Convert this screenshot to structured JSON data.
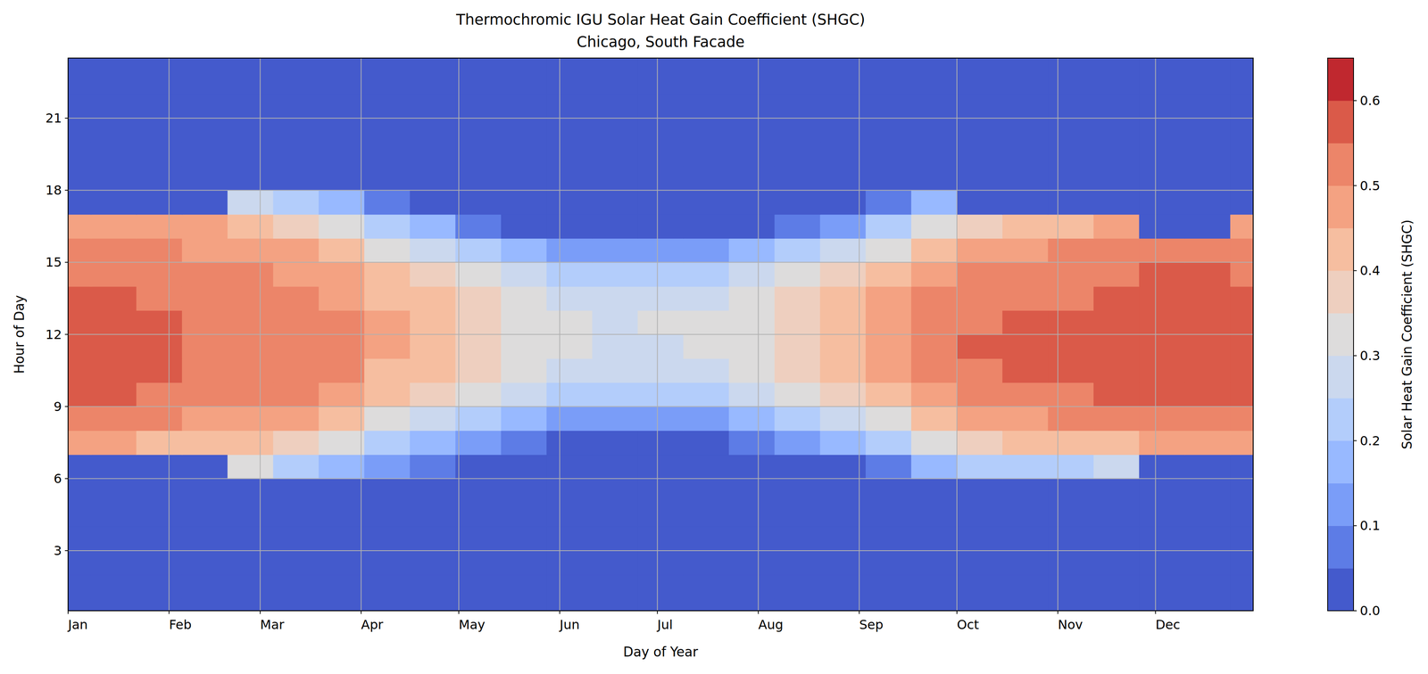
{
  "chart_data": {
    "type": "heatmap",
    "title": "Thermochromic IGU Solar Heat Gain Coefficient (SHGC)",
    "subtitle": "Chicago, South Facade",
    "x_label": "Day of Year",
    "y_label": "Hour of Day",
    "x": [
      1,
      15,
      29,
      43,
      57,
      71,
      85,
      99,
      113,
      127,
      141,
      155,
      169,
      183,
      197,
      211,
      225,
      239,
      253,
      267,
      281,
      295,
      309,
      323,
      337,
      351,
      365
    ],
    "y": [
      0.5,
      1.5,
      2.5,
      3.5,
      4.5,
      5.5,
      6.5,
      7.5,
      8.5,
      9.5,
      10.5,
      11.5,
      12.5,
      13.5,
      14.5,
      15.5,
      16.5,
      17.5,
      18.5,
      19.5,
      20.5,
      21.5,
      22.5,
      23.5
    ],
    "values": [
      [
        0,
        0,
        0,
        0,
        0,
        0,
        0,
        0,
        0,
        0,
        0,
        0,
        0,
        0,
        0,
        0,
        0,
        0,
        0,
        0,
        0,
        0,
        0,
        0,
        0,
        0,
        0
      ],
      [
        0,
        0,
        0,
        0,
        0,
        0,
        0,
        0,
        0,
        0,
        0,
        0,
        0,
        0,
        0,
        0,
        0,
        0,
        0,
        0,
        0,
        0,
        0,
        0,
        0,
        0,
        0
      ],
      [
        0,
        0,
        0,
        0,
        0,
        0,
        0,
        0,
        0,
        0,
        0,
        0,
        0,
        0,
        0,
        0,
        0,
        0,
        0,
        0,
        0,
        0,
        0,
        0,
        0,
        0,
        0
      ],
      [
        0,
        0,
        0,
        0,
        0,
        0,
        0,
        0,
        0,
        0,
        0,
        0,
        0,
        0,
        0,
        0,
        0,
        0,
        0,
        0,
        0,
        0,
        0,
        0,
        0,
        0,
        0
      ],
      [
        0,
        0,
        0,
        0,
        0,
        0,
        0,
        0,
        0,
        0,
        0,
        0,
        0,
        0,
        0,
        0,
        0,
        0,
        0,
        0,
        0,
        0,
        0,
        0,
        0,
        0,
        0
      ],
      [
        0,
        0,
        0,
        0,
        0,
        0,
        0,
        0,
        0,
        0,
        0,
        0,
        0,
        0,
        0,
        0,
        0,
        0,
        0,
        0.01,
        0,
        0,
        0,
        0,
        0,
        0,
        0
      ],
      [
        0,
        0,
        0,
        0,
        0.3,
        0.2,
        0.15,
        0.1,
        0.05,
        0.02,
        0,
        0,
        0,
        0,
        0,
        0,
        0.01,
        0.04,
        0.08,
        0.15,
        0.2,
        0.2,
        0.22,
        0.25,
        0,
        0,
        0
      ],
      [
        0.45,
        0.45,
        0.43,
        0.42,
        0.4,
        0.35,
        0.3,
        0.22,
        0.15,
        0.1,
        0.06,
        0.03,
        0.02,
        0.02,
        0.03,
        0.05,
        0.1,
        0.15,
        0.22,
        0.3,
        0.37,
        0.4,
        0.42,
        0.44,
        0.47,
        0.47,
        0.46
      ],
      [
        0.52,
        0.52,
        0.5,
        0.49,
        0.47,
        0.45,
        0.4,
        0.33,
        0.27,
        0.22,
        0.17,
        0.14,
        0.12,
        0.12,
        0.13,
        0.16,
        0.22,
        0.28,
        0.34,
        0.42,
        0.46,
        0.48,
        0.5,
        0.52,
        0.54,
        0.54,
        0.53
      ],
      [
        0.57,
        0.56,
        0.54,
        0.52,
        0.5,
        0.5,
        0.47,
        0.4,
        0.36,
        0.3,
        0.27,
        0.23,
        0.22,
        0.22,
        0.23,
        0.27,
        0.32,
        0.37,
        0.42,
        0.48,
        0.52,
        0.53,
        0.54,
        0.56,
        0.58,
        0.58,
        0.57
      ],
      [
        0.58,
        0.58,
        0.56,
        0.53,
        0.52,
        0.52,
        0.5,
        0.43,
        0.4,
        0.36,
        0.31,
        0.28,
        0.27,
        0.27,
        0.28,
        0.32,
        0.37,
        0.42,
        0.46,
        0.52,
        0.54,
        0.55,
        0.56,
        0.57,
        0.58,
        0.59,
        0.58
      ],
      [
        0.58,
        0.57,
        0.56,
        0.53,
        0.52,
        0.52,
        0.5,
        0.45,
        0.42,
        0.38,
        0.33,
        0.3,
        0.29,
        0.29,
        0.3,
        0.34,
        0.39,
        0.43,
        0.47,
        0.52,
        0.55,
        0.56,
        0.57,
        0.58,
        0.59,
        0.59,
        0.58
      ],
      [
        0.58,
        0.57,
        0.55,
        0.53,
        0.52,
        0.52,
        0.5,
        0.45,
        0.42,
        0.37,
        0.33,
        0.3,
        0.29,
        0.3,
        0.3,
        0.34,
        0.39,
        0.43,
        0.47,
        0.52,
        0.54,
        0.55,
        0.56,
        0.57,
        0.58,
        0.59,
        0.58
      ],
      [
        0.57,
        0.56,
        0.54,
        0.52,
        0.51,
        0.5,
        0.48,
        0.43,
        0.4,
        0.35,
        0.3,
        0.27,
        0.26,
        0.27,
        0.28,
        0.31,
        0.36,
        0.41,
        0.45,
        0.5,
        0.52,
        0.53,
        0.54,
        0.56,
        0.57,
        0.58,
        0.57
      ],
      [
        0.53,
        0.52,
        0.51,
        0.5,
        0.5,
        0.48,
        0.45,
        0.4,
        0.36,
        0.3,
        0.25,
        0.22,
        0.21,
        0.21,
        0.22,
        0.26,
        0.31,
        0.36,
        0.41,
        0.46,
        0.5,
        0.51,
        0.52,
        0.53,
        0.55,
        0.56,
        0.54
      ],
      [
        0.52,
        0.51,
        0.5,
        0.48,
        0.47,
        0.45,
        0.4,
        0.33,
        0.27,
        0.2,
        0.15,
        0.12,
        0.11,
        0.11,
        0.12,
        0.15,
        0.21,
        0.27,
        0.33,
        0.4,
        0.45,
        0.47,
        0.5,
        0.51,
        0.52,
        0.52,
        0.52
      ],
      [
        0.48,
        0.47,
        0.46,
        0.45,
        0.42,
        0.38,
        0.32,
        0.22,
        0.15,
        0.08,
        0.03,
        0.01,
        0,
        0,
        0.01,
        0.04,
        0.08,
        0.14,
        0.21,
        0.3,
        0.38,
        0.42,
        0.44,
        0.46,
        0,
        0,
        0.48
      ],
      [
        0,
        0,
        0,
        0,
        0.25,
        0.2,
        0.15,
        0.08,
        0.03,
        0,
        0,
        0,
        0,
        0,
        0,
        0,
        0,
        0.03,
        0.07,
        0.15,
        0,
        0,
        0,
        0,
        0,
        0,
        0
      ],
      [
        0,
        0,
        0,
        0,
        0,
        0.02,
        0,
        0,
        0,
        0,
        0,
        0,
        0,
        0,
        0,
        0,
        0,
        0,
        0,
        0,
        0,
        0,
        0,
        0,
        0,
        0,
        0
      ],
      [
        0,
        0,
        0,
        0,
        0,
        0,
        0,
        0,
        0,
        0,
        0,
        0,
        0,
        0,
        0,
        0,
        0,
        0,
        0,
        0,
        0,
        0,
        0,
        0,
        0,
        0,
        0
      ],
      [
        0,
        0,
        0,
        0,
        0,
        0,
        0,
        0,
        0,
        0,
        0,
        0,
        0,
        0,
        0,
        0,
        0,
        0,
        0,
        0,
        0,
        0,
        0,
        0,
        0,
        0,
        0
      ],
      [
        0,
        0,
        0,
        0,
        0,
        0,
        0,
        0,
        0,
        0,
        0,
        0,
        0,
        0,
        0,
        0,
        0,
        0,
        0,
        0,
        0,
        0,
        0,
        0,
        0,
        0,
        0
      ],
      [
        0,
        0,
        0,
        0,
        0,
        0,
        0,
        0,
        0,
        0,
        0,
        0,
        0,
        0,
        0,
        0,
        0,
        0,
        0,
        0,
        0,
        0,
        0,
        0,
        0,
        0,
        0
      ],
      [
        0,
        0,
        0,
        0,
        0,
        0,
        0,
        0,
        0,
        0,
        0,
        0,
        0,
        0,
        0,
        0,
        0,
        0,
        0,
        0,
        0,
        0,
        0,
        0,
        0,
        0,
        0
      ]
    ],
    "xlim": [
      1,
      365
    ],
    "xticks": [
      {
        "value": 1,
        "label": "Jan"
      },
      {
        "value": 32,
        "label": "Feb"
      },
      {
        "value": 60,
        "label": "Mar"
      },
      {
        "value": 91,
        "label": "Apr"
      },
      {
        "value": 121,
        "label": "May"
      },
      {
        "value": 152,
        "label": "Jun"
      },
      {
        "value": 182,
        "label": "Jul"
      },
      {
        "value": 213,
        "label": "Aug"
      },
      {
        "value": 244,
        "label": "Sep"
      },
      {
        "value": 274,
        "label": "Oct"
      },
      {
        "value": 305,
        "label": "Nov"
      },
      {
        "value": 335,
        "label": "Dec"
      }
    ],
    "ylim": [
      0.5,
      23.5
    ],
    "yticks": [
      3,
      6,
      9,
      12,
      15,
      18,
      21
    ],
    "grid": true,
    "colorbar": {
      "label": "Solar Heat Gain Coefficient (SHGC)",
      "range": [
        0,
        0.65
      ],
      "ticks": [
        {
          "value": 0,
          "label": "0.0"
        },
        0.1,
        0.2,
        0.3,
        0.4,
        0.5,
        0.6
      ],
      "levels": [
        0,
        0.05,
        0.1,
        0.15,
        0.2,
        0.25,
        0.3,
        0.35,
        0.4,
        0.45,
        0.5,
        0.55,
        0.6,
        0.65
      ]
    },
    "colors": [
      "#445acc",
      "#5d7ce6",
      "#7a9df8",
      "#98b9ff",
      "#b3cdfb",
      "#cbd8ee",
      "#dddcdc",
      "#eecfbf",
      "#f6bea0",
      "#f4a282",
      "#ec8569",
      "#da5a49",
      "#c0282f"
    ]
  }
}
